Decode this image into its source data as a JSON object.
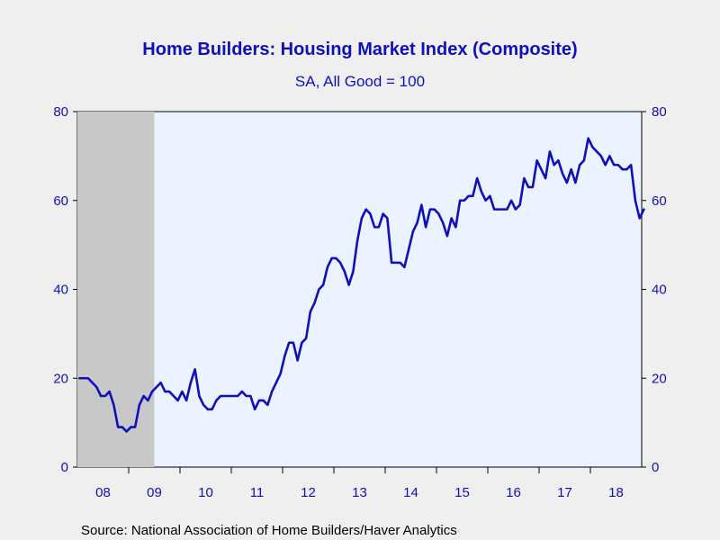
{
  "chart_data": {
    "type": "line",
    "title": "Home Builders: Housing Market Index (Composite)",
    "subtitle": "SA, All Good = 100",
    "source": "Source:  National Association of Home Builders/Haver Analytics",
    "xlabel": "",
    "ylabel": "",
    "ylim": [
      0,
      80
    ],
    "yticks": [
      "0",
      "20",
      "40",
      "60",
      "80"
    ],
    "x_tick_labels": [
      "08",
      "09",
      "10",
      "11",
      "12",
      "13",
      "14",
      "15",
      "16",
      "17",
      "18"
    ],
    "x_start": "2008-01",
    "x_end": "2018-12",
    "recession": {
      "start": "2008-01",
      "end": "2009-06"
    },
    "grid": false,
    "legend": "none",
    "series": [
      {
        "color": "#1010b8",
        "values": [
          20,
          20,
          20,
          19,
          18,
          16,
          16,
          17,
          14,
          9,
          9,
          8,
          9,
          9,
          14,
          16,
          15,
          17,
          18,
          19,
          17,
          17,
          16,
          15,
          17,
          15,
          19,
          22,
          16,
          14,
          13,
          13,
          15,
          16,
          16,
          16,
          16,
          16,
          17,
          16,
          16,
          13,
          15,
          15,
          14,
          17,
          19,
          21,
          25,
          28,
          28,
          24,
          28,
          29,
          35,
          37,
          40,
          41,
          45,
          47,
          47,
          46,
          44,
          41,
          44,
          51,
          56,
          58,
          57,
          54,
          54,
          57,
          56,
          46,
          46,
          46,
          45,
          49,
          53,
          55,
          59,
          54,
          58,
          58,
          57,
          55,
          52,
          56,
          54,
          60,
          60,
          61,
          61,
          65,
          62,
          60,
          61,
          58,
          58,
          58,
          58,
          60,
          58,
          59,
          65,
          63,
          63,
          69,
          67,
          65,
          71,
          68,
          69,
          66,
          64,
          67,
          64,
          68,
          69,
          74,
          72,
          71,
          70,
          68,
          70,
          68,
          68,
          67,
          67,
          68,
          60,
          56,
          58
        ]
      }
    ],
    "colors": {
      "line": "#1010b8",
      "plot_background": "#eaf3ff",
      "recession_shade": "#c8c8c8",
      "axis_text": "#1010b8",
      "title": "#1010b8",
      "source_text": "#000000",
      "page_background": "#efefef"
    }
  }
}
